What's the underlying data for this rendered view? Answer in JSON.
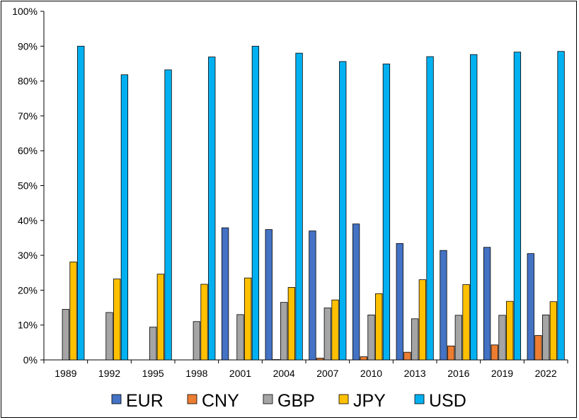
{
  "chart_data": {
    "type": "bar",
    "title": "",
    "xlabel": "",
    "ylabel": "",
    "ylim": [
      0,
      100
    ],
    "y_ticks": [
      "0%",
      "10%",
      "20%",
      "30%",
      "40%",
      "50%",
      "60%",
      "70%",
      "80%",
      "90%",
      "100%"
    ],
    "grid": false,
    "legend_position": "bottom",
    "categories": [
      "1989",
      "1992",
      "1995",
      "1998",
      "2001",
      "2004",
      "2007",
      "2010",
      "2013",
      "2016",
      "2019",
      "2022"
    ],
    "series": [
      {
        "name": "EUR",
        "color": "#4472C4",
        "values": [
          0,
          0,
          0,
          0,
          37.9,
          37.4,
          37.0,
          39.0,
          33.4,
          31.4,
          32.3,
          30.5
        ]
      },
      {
        "name": "CNY",
        "color": "#ED7D31",
        "values": [
          0,
          0,
          0,
          0,
          0,
          0.1,
          0.5,
          0.9,
          2.2,
          4.0,
          4.3,
          7.0
        ]
      },
      {
        "name": "GBP",
        "color": "#A5A5A5",
        "values": [
          14.5,
          13.6,
          9.4,
          11.0,
          13.0,
          16.5,
          14.9,
          12.9,
          11.8,
          12.8,
          12.8,
          12.9
        ]
      },
      {
        "name": "JPY",
        "color": "#FFC000",
        "values": [
          28.1,
          23.2,
          24.6,
          21.7,
          23.5,
          20.8,
          17.2,
          19.0,
          23.0,
          21.6,
          16.8,
          16.7
        ]
      },
      {
        "name": "USD",
        "color": "#00B0F0",
        "values": [
          90.0,
          81.8,
          83.2,
          86.9,
          90.0,
          88.0,
          85.6,
          84.9,
          87.0,
          87.6,
          88.3,
          88.5
        ]
      }
    ]
  }
}
